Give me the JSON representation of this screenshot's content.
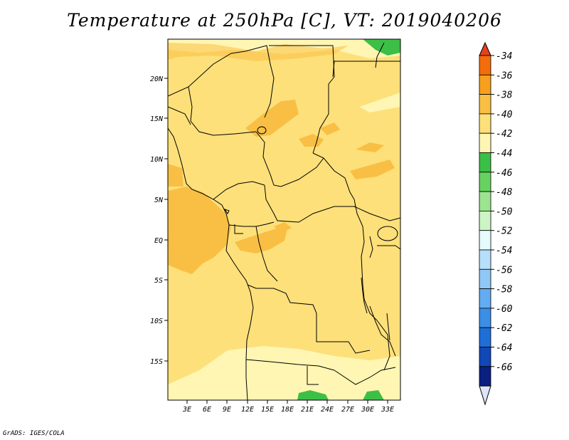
{
  "title": "Temperature at 250hPa [C], VT: 2019040206",
  "credit": "GrADS: IGES/COLA",
  "map": {
    "lat_ticks": [
      "20N",
      "15N",
      "10N",
      "5N",
      "EQ",
      "5S",
      "10S",
      "15S"
    ],
    "lon_ticks": [
      "3E",
      "6E",
      "9E",
      "12E",
      "15E",
      "18E",
      "21E",
      "24E",
      "27E",
      "30E",
      "33E"
    ]
  },
  "colorbar": {
    "labels": [
      "-34",
      "-36",
      "-38",
      "-40",
      "-42",
      "-44",
      "-46",
      "-48",
      "-50",
      "-52",
      "-54",
      "-56",
      "-58",
      "-60",
      "-62",
      "-64",
      "-66"
    ],
    "colors": [
      "#e8401c",
      "#f36d0c",
      "#f7a01e",
      "#f9bf44",
      "#fde07a",
      "#fff6b3",
      "#3cbf46",
      "#68d260",
      "#9ce48f",
      "#cdf4c4",
      "#e6fbfb",
      "#b7dffb",
      "#90c8f5",
      "#64acf1",
      "#3c8ee6",
      "#1f6ed8",
      "#1048b8",
      "#0a1f82",
      "#dde5fa"
    ]
  }
}
